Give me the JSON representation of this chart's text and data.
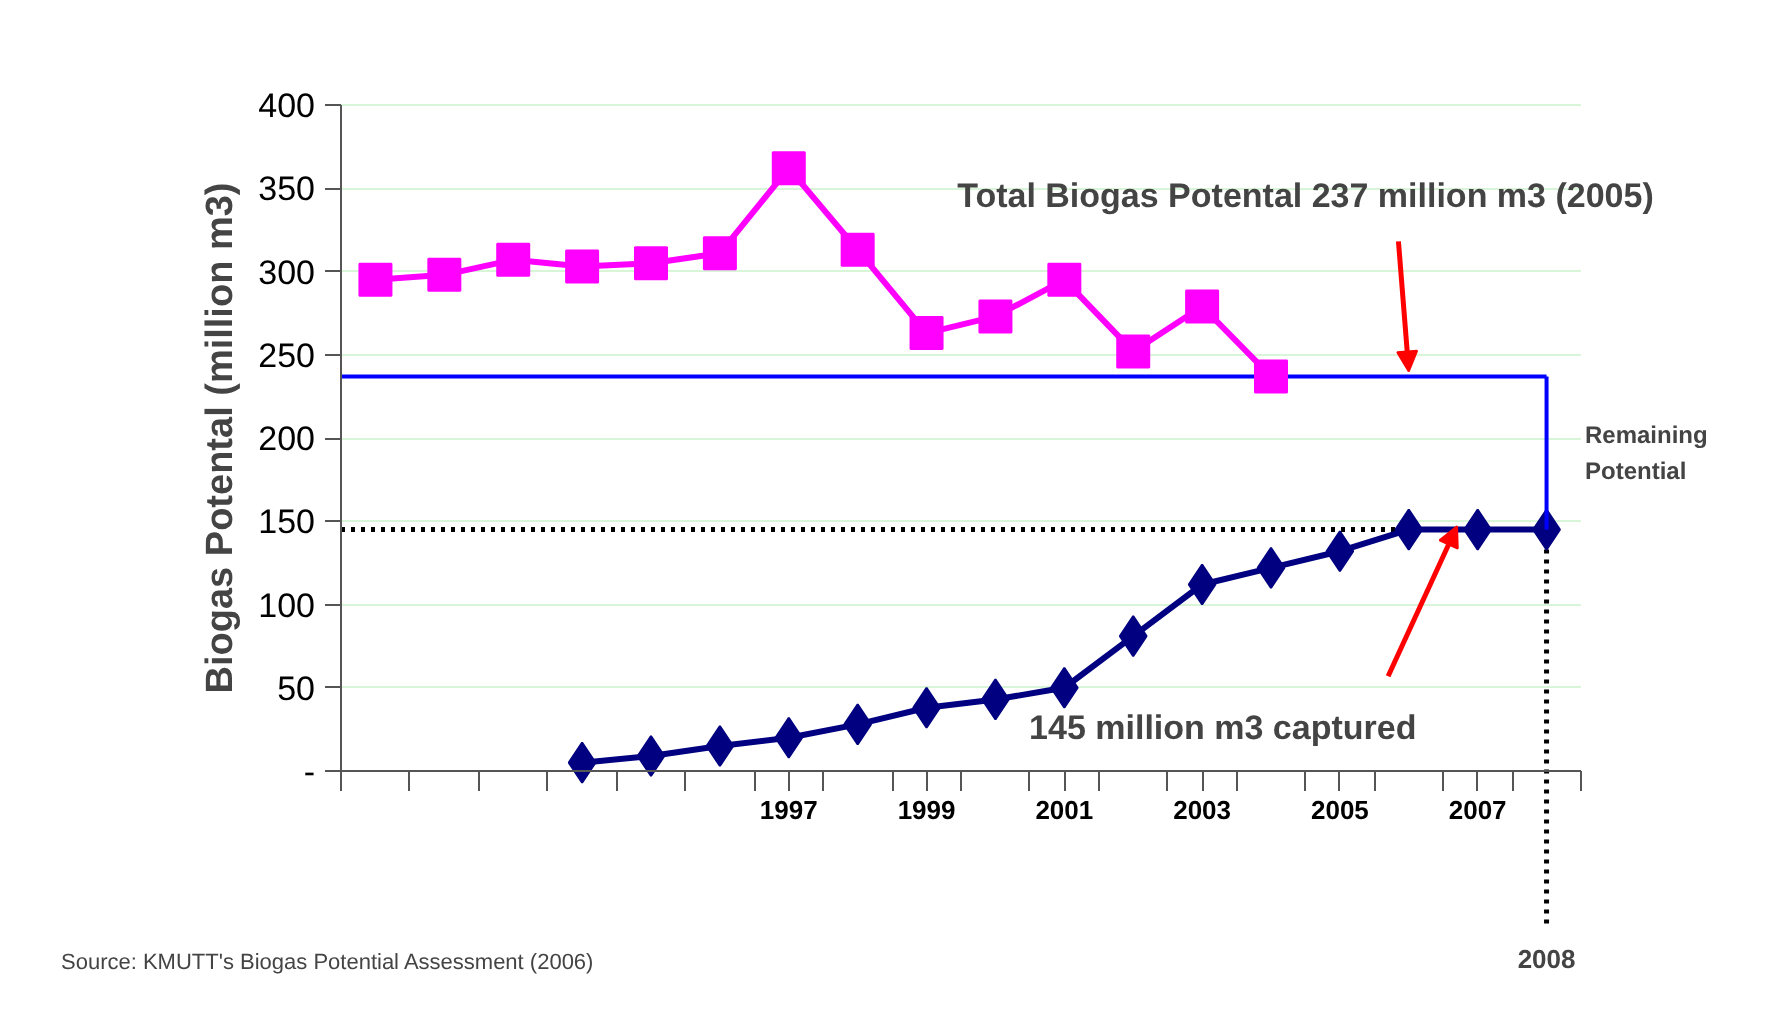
{
  "chart_data": {
    "type": "line",
    "ylabel": "Biogas Potental (million m3)",
    "x": [
      1991,
      1992,
      1993,
      1994,
      1995,
      1996,
      1997,
      1998,
      1999,
      2000,
      2001,
      2002,
      2003,
      2004,
      2005,
      2006,
      2007,
      2008
    ],
    "series": [
      {
        "color": "#ff00ff",
        "marker": "square",
        "values": [
          295,
          298,
          307,
          303,
          305,
          311,
          362,
          313,
          263,
          273,
          295,
          252,
          279,
          237,
          null,
          null,
          null,
          null
        ]
      },
      {
        "color": "#000080",
        "marker": "diamond",
        "values": [
          null,
          null,
          null,
          5,
          9,
          15,
          20,
          28,
          38,
          43,
          50,
          81,
          112,
          122,
          132,
          145,
          145,
          145
        ]
      },
      {
        "color": "#0000ff",
        "marker": "none",
        "x": [
          2008,
          2008
        ],
        "values": [
          237,
          145
        ]
      }
    ],
    "xlim": [
      1990.5,
      2008.5
    ],
    "xticks": [
      {
        "value": 1990.5,
        "label": null
      },
      {
        "value": 1991.5,
        "label": null
      },
      {
        "value": 1992.5,
        "label": null
      },
      {
        "value": 1993.5,
        "label": null
      },
      {
        "value": 1994.5,
        "label": null
      },
      {
        "value": 1995.5,
        "label": null
      },
      {
        "value": 1996.5,
        "label": null
      },
      1997,
      {
        "value": 1997.5,
        "label": null
      },
      {
        "value": 1998.5,
        "label": null
      },
      1999,
      {
        "value": 1999.5,
        "label": null
      },
      {
        "value": 2000.5,
        "label": null
      },
      2001,
      {
        "value": 2001.5,
        "label": null
      },
      {
        "value": 2002.5,
        "label": null
      },
      2003,
      {
        "value": 2003.5,
        "label": null
      },
      {
        "value": 2004.5,
        "label": null
      },
      2005,
      {
        "value": 2005.5,
        "label": null
      },
      {
        "value": 2006.5,
        "label": null
      },
      2007,
      {
        "value": 2007.5,
        "label": null
      },
      {
        "value": 2008.5,
        "label": null
      }
    ],
    "ylim": [
      0,
      400
    ],
    "yticks": [
      {
        "value": 0,
        "label": "-"
      },
      50,
      100,
      150,
      200,
      250,
      300,
      350,
      400
    ],
    "grid": "y",
    "line_style": "solid",
    "ref_lines": [
      {
        "axis": "y",
        "value": 237,
        "label": null,
        "color": "#0000ff",
        "line_style": "solid"
      },
      {
        "axis": "y",
        "value": 145,
        "label": null,
        "color": "#000000",
        "line_style": "dotted"
      },
      {
        "axis": "x",
        "value": 2008,
        "label": "2008",
        "color": "#000000",
        "line_style": "dotted"
      }
    ],
    "annotations": [
      {
        "text": "Total Biogas Potental 237 million m3 (2005)",
        "x": 2006,
        "y": 240
      },
      {
        "text": "145 million m3 captured",
        "x": 2006.7,
        "y": 147
      },
      "Remaining Potential",
      "Source: KMUTT's Biogas Potential Assessment (2006)"
    ]
  }
}
